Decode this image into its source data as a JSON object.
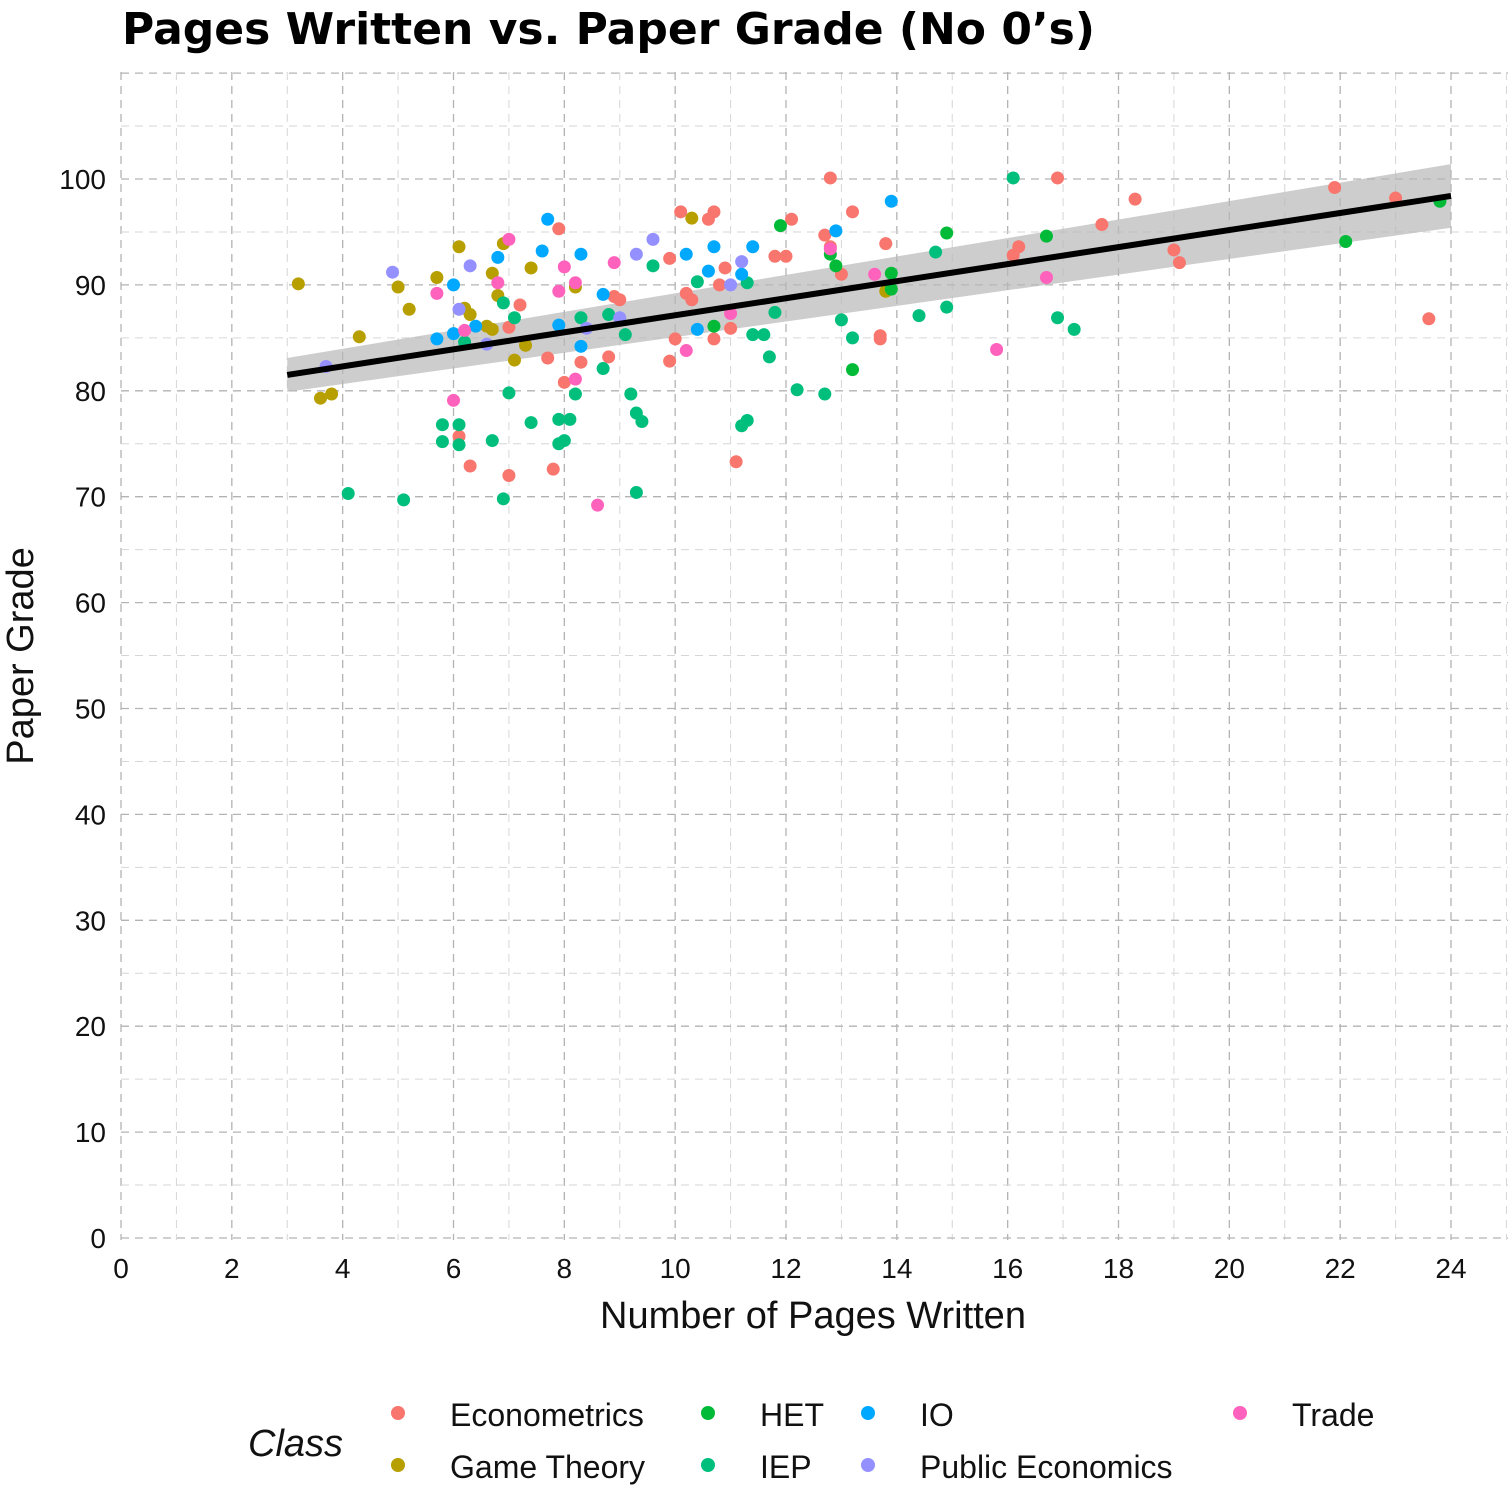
{
  "chart_data": {
    "type": "scatter",
    "title": "Pages Written vs. Paper Grade (No 0’s)",
    "xlabel": "Number of Pages Written",
    "ylabel": "Paper Grade",
    "xlim": [
      0,
      24
    ],
    "ylim": [
      0,
      100
    ],
    "x_ticks": [
      0,
      2,
      4,
      6,
      8,
      10,
      12,
      14,
      16,
      18,
      20,
      22,
      24
    ],
    "y_ticks": [
      0,
      10,
      20,
      30,
      40,
      50,
      60,
      70,
      80,
      90,
      100
    ],
    "grid": true,
    "legend": {
      "title": "Class",
      "position": "bottom"
    },
    "trend_line": {
      "x": [
        3.0,
        24.0
      ],
      "y": [
        81.5,
        98.4
      ],
      "ci_lower": [
        79.9,
        95.4
      ],
      "ci_upper": [
        83.1,
        101.4
      ]
    },
    "series": [
      {
        "name": "Econometrics",
        "color": "#F8766D",
        "points": [
          [
            6.1,
            75.7
          ],
          [
            6.3,
            72.9
          ],
          [
            7.0,
            72.0
          ],
          [
            7.0,
            86.0
          ],
          [
            7.2,
            88.1
          ],
          [
            7.7,
            83.1
          ],
          [
            7.8,
            72.6
          ],
          [
            7.9,
            95.3
          ],
          [
            8.0,
            80.8
          ],
          [
            8.3,
            82.7
          ],
          [
            8.8,
            83.2
          ],
          [
            8.9,
            88.9
          ],
          [
            9.0,
            88.6
          ],
          [
            9.9,
            92.5
          ],
          [
            9.9,
            82.8
          ],
          [
            10.0,
            84.9
          ],
          [
            10.1,
            96.9
          ],
          [
            10.2,
            89.2
          ],
          [
            10.3,
            88.6
          ],
          [
            10.6,
            96.2
          ],
          [
            10.7,
            84.9
          ],
          [
            10.7,
            96.9
          ],
          [
            10.8,
            90.0
          ],
          [
            10.9,
            91.6
          ],
          [
            11.0,
            85.9
          ],
          [
            11.1,
            73.3
          ],
          [
            11.8,
            92.7
          ],
          [
            12.0,
            92.7
          ],
          [
            12.1,
            96.2
          ],
          [
            12.7,
            94.7
          ],
          [
            12.8,
            93.6
          ],
          [
            12.8,
            100.1
          ],
          [
            13.0,
            91.0
          ],
          [
            13.2,
            96.9
          ],
          [
            13.7,
            85.2
          ],
          [
            13.7,
            84.9
          ],
          [
            13.8,
            93.9
          ],
          [
            16.1,
            92.8
          ],
          [
            16.2,
            93.6
          ],
          [
            16.9,
            100.1
          ],
          [
            17.7,
            95.7
          ],
          [
            18.3,
            98.1
          ],
          [
            19.0,
            93.3
          ],
          [
            19.1,
            92.1
          ],
          [
            21.9,
            99.2
          ],
          [
            23.0,
            98.2
          ],
          [
            23.6,
            86.8
          ]
        ]
      },
      {
        "name": "Game Theory",
        "color": "#B79F00",
        "points": [
          [
            3.2,
            90.1
          ],
          [
            3.6,
            79.3
          ],
          [
            3.8,
            79.7
          ],
          [
            4.3,
            85.1
          ],
          [
            5.0,
            89.8
          ],
          [
            5.2,
            87.7
          ],
          [
            5.7,
            90.7
          ],
          [
            6.1,
            93.6
          ],
          [
            6.2,
            87.8
          ],
          [
            6.3,
            87.2
          ],
          [
            6.6,
            86.1
          ],
          [
            6.7,
            91.1
          ],
          [
            6.7,
            85.8
          ],
          [
            6.8,
            89.0
          ],
          [
            6.9,
            93.9
          ],
          [
            7.1,
            82.9
          ],
          [
            7.3,
            84.3
          ],
          [
            7.4,
            91.6
          ],
          [
            8.2,
            89.8
          ],
          [
            10.3,
            96.3
          ],
          [
            13.8,
            89.4
          ]
        ]
      },
      {
        "name": "HET",
        "color": "#00BA38",
        "points": [
          [
            10.7,
            86.1
          ],
          [
            11.9,
            95.6
          ],
          [
            12.8,
            92.9
          ],
          [
            12.9,
            91.8
          ],
          [
            13.2,
            82.0
          ],
          [
            13.9,
            91.1
          ],
          [
            13.9,
            89.6
          ],
          [
            14.9,
            94.9
          ],
          [
            16.7,
            94.6
          ],
          [
            22.1,
            94.1
          ],
          [
            23.8,
            97.9
          ]
        ]
      },
      {
        "name": "IEP",
        "color": "#00BF7D",
        "points": [
          [
            4.1,
            70.3
          ],
          [
            5.1,
            69.7
          ],
          [
            5.8,
            76.8
          ],
          [
            5.8,
            75.2
          ],
          [
            6.1,
            76.8
          ],
          [
            6.1,
            74.9
          ],
          [
            6.2,
            84.6
          ],
          [
            6.7,
            75.3
          ],
          [
            6.9,
            88.3
          ],
          [
            6.9,
            69.8
          ],
          [
            7.0,
            79.8
          ],
          [
            7.1,
            86.9
          ],
          [
            7.4,
            77.0
          ],
          [
            7.9,
            77.3
          ],
          [
            7.9,
            75.0
          ],
          [
            8.0,
            75.3
          ],
          [
            8.1,
            77.3
          ],
          [
            8.2,
            79.7
          ],
          [
            8.3,
            86.9
          ],
          [
            8.7,
            82.1
          ],
          [
            8.8,
            87.2
          ],
          [
            9.1,
            85.3
          ],
          [
            9.2,
            79.7
          ],
          [
            9.3,
            70.4
          ],
          [
            9.3,
            77.9
          ],
          [
            9.4,
            77.1
          ],
          [
            9.6,
            91.8
          ],
          [
            10.4,
            90.3
          ],
          [
            11.2,
            76.7
          ],
          [
            11.3,
            77.2
          ],
          [
            11.3,
            90.2
          ],
          [
            11.4,
            85.3
          ],
          [
            11.6,
            85.3
          ],
          [
            11.7,
            83.2
          ],
          [
            11.8,
            87.4
          ],
          [
            12.2,
            80.1
          ],
          [
            12.7,
            79.7
          ],
          [
            13.0,
            86.7
          ],
          [
            13.2,
            85.0
          ],
          [
            14.4,
            87.1
          ],
          [
            14.7,
            93.1
          ],
          [
            14.9,
            87.9
          ],
          [
            16.1,
            100.1
          ],
          [
            16.9,
            86.9
          ],
          [
            17.2,
            85.8
          ]
        ]
      },
      {
        "name": "IO",
        "color": "#00A9FF",
        "points": [
          [
            5.7,
            84.9
          ],
          [
            6.0,
            85.4
          ],
          [
            6.0,
            90.0
          ],
          [
            6.4,
            86.1
          ],
          [
            6.8,
            92.6
          ],
          [
            7.6,
            93.2
          ],
          [
            7.7,
            96.2
          ],
          [
            7.9,
            86.2
          ],
          [
            8.3,
            92.9
          ],
          [
            8.3,
            84.2
          ],
          [
            8.7,
            89.1
          ],
          [
            10.2,
            92.9
          ],
          [
            10.4,
            85.8
          ],
          [
            10.6,
            91.3
          ],
          [
            10.7,
            93.6
          ],
          [
            11.2,
            91.0
          ],
          [
            11.4,
            93.6
          ],
          [
            12.9,
            95.1
          ],
          [
            13.9,
            97.9
          ]
        ]
      },
      {
        "name": "Public Economics",
        "color": "#9590FF",
        "points": [
          [
            3.7,
            82.3
          ],
          [
            4.9,
            91.2
          ],
          [
            6.1,
            87.7
          ],
          [
            6.3,
            91.8
          ],
          [
            6.6,
            84.4
          ],
          [
            8.4,
            85.9
          ],
          [
            9.0,
            86.9
          ],
          [
            9.3,
            92.9
          ],
          [
            9.6,
            94.3
          ],
          [
            11.0,
            90.0
          ],
          [
            11.2,
            92.2
          ]
        ]
      },
      {
        "name": "Trade",
        "color": "#FF62BC",
        "points": [
          [
            5.7,
            89.2
          ],
          [
            6.0,
            79.1
          ],
          [
            6.2,
            85.7
          ],
          [
            6.8,
            90.2
          ],
          [
            7.0,
            94.3
          ],
          [
            7.9,
            89.4
          ],
          [
            8.0,
            91.7
          ],
          [
            8.2,
            81.1
          ],
          [
            8.2,
            90.2
          ],
          [
            8.6,
            69.2
          ],
          [
            8.9,
            92.1
          ],
          [
            10.2,
            83.8
          ],
          [
            11.0,
            87.3
          ],
          [
            12.8,
            93.4
          ],
          [
            13.6,
            91.0
          ],
          [
            15.8,
            83.9
          ],
          [
            16.7,
            90.7
          ]
        ]
      }
    ]
  }
}
